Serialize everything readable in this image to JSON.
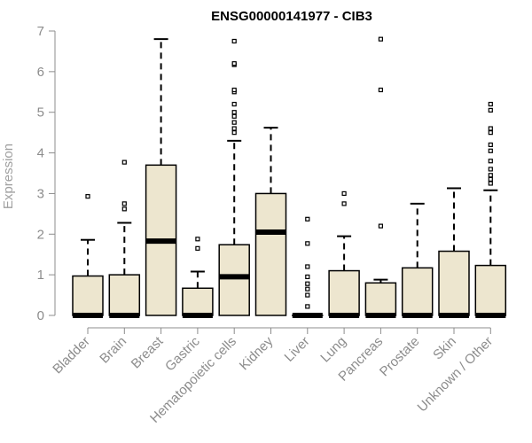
{
  "chart_data": {
    "type": "boxplot",
    "title": "ENSG00000141977 - CIB3",
    "xlabel": "",
    "ylabel": "Expression",
    "ylim": [
      0,
      7
    ],
    "yticks": [
      "0",
      "1",
      "2",
      "3",
      "4",
      "5",
      "6",
      "7"
    ],
    "box_fill": "#ede6cf",
    "box_stroke": "#000000",
    "axis_color": "#8c8c8c",
    "grid": false,
    "categories": [
      "Bladder",
      "Brain",
      "Breast",
      "Gastric",
      "Hematopoietic cells",
      "Kidney",
      "Liver",
      "Lung",
      "Pancreas",
      "Prostate",
      "Skin",
      "Unknown / Other"
    ],
    "boxes": [
      {
        "category": "Bladder",
        "q1": 0,
        "median": 0,
        "q3": 0.97,
        "whisker_low": 0,
        "whisker_high": 1.86,
        "outliers": [
          2.93
        ]
      },
      {
        "category": "Brain",
        "q1": 0,
        "median": 0,
        "q3": 1.0,
        "whisker_low": 0,
        "whisker_high": 2.28,
        "outliers": [
          2.62,
          2.75,
          3.77
        ]
      },
      {
        "category": "Breast",
        "q1": 0,
        "median": 1.83,
        "q3": 3.7,
        "whisker_low": 0,
        "whisker_high": 6.8,
        "outliers": []
      },
      {
        "category": "Gastric",
        "q1": 0,
        "median": 0,
        "q3": 0.67,
        "whisker_low": 0,
        "whisker_high": 1.08,
        "outliers": [
          1.65,
          1.88
        ]
      },
      {
        "category": "Hematopoietic cells",
        "q1": 0,
        "median": 0.95,
        "q3": 1.74,
        "whisker_low": 0,
        "whisker_high": 4.3,
        "outliers": [
          4.5,
          4.6,
          4.75,
          4.9,
          5.0,
          5.2,
          5.5,
          5.55,
          6.17,
          6.2,
          6.75
        ]
      },
      {
        "category": "Kidney",
        "q1": 0,
        "median": 2.05,
        "q3": 3.0,
        "whisker_low": 0,
        "whisker_high": 4.62,
        "outliers": []
      },
      {
        "category": "Liver",
        "q1": 0,
        "median": 0,
        "q3": 0,
        "whisker_low": 0,
        "whisker_high": 0,
        "outliers": [
          0.22,
          0.5,
          0.65,
          0.78,
          0.95,
          1.2,
          1.77,
          2.37
        ]
      },
      {
        "category": "Lung",
        "q1": 0,
        "median": 0,
        "q3": 1.1,
        "whisker_low": 0,
        "whisker_high": 1.95,
        "outliers": [
          2.75,
          3.0
        ]
      },
      {
        "category": "Pancreas",
        "q1": 0,
        "median": 0,
        "q3": 0.8,
        "whisker_low": 0,
        "whisker_high": 0.88,
        "outliers": [
          2.2,
          5.55,
          6.8
        ]
      },
      {
        "category": "Prostate",
        "q1": 0,
        "median": 0,
        "q3": 1.17,
        "whisker_low": 0,
        "whisker_high": 2.75,
        "outliers": []
      },
      {
        "category": "Skin",
        "q1": 0,
        "median": 0,
        "q3": 1.58,
        "whisker_low": 0,
        "whisker_high": 3.13,
        "outliers": []
      },
      {
        "category": "Unknown / Other",
        "q1": 0,
        "median": 0,
        "q3": 1.23,
        "whisker_low": 0,
        "whisker_high": 3.08,
        "outliers": [
          3.25,
          3.35,
          3.45,
          3.6,
          3.8,
          4.05,
          4.2,
          4.5,
          4.6,
          5.05,
          5.2
        ]
      }
    ]
  }
}
